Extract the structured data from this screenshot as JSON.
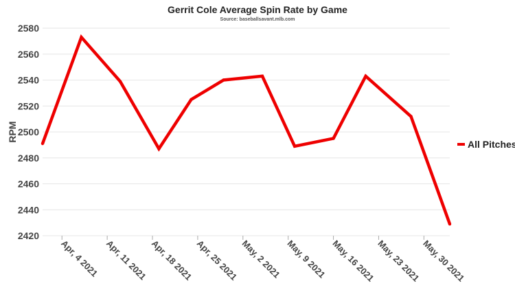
{
  "chart_data": {
    "type": "line",
    "title": "Gerrit Cole Average Spin Rate by Game",
    "subtitle": "Source: baseballsavant.mlb.com",
    "xlabel": "",
    "ylabel": "RPM",
    "ylim": [
      2420,
      2580
    ],
    "yticks": [
      2420,
      2440,
      2460,
      2480,
      2500,
      2520,
      2540,
      2560,
      2580
    ],
    "xlim": [
      "2021-04-01",
      "2021-06-03"
    ],
    "xtick_labels": [
      "Apr, 4 2021",
      "Apr, 11 2021",
      "Apr, 18 2021",
      "Apr, 25 2021",
      "May, 2 2021",
      "May, 9 2021",
      "May, 16 2021",
      "May, 23 2021",
      "May, 30 2021"
    ],
    "xtick_dates": [
      "2021-04-04",
      "2021-04-11",
      "2021-04-18",
      "2021-04-25",
      "2021-05-02",
      "2021-05-09",
      "2021-05-16",
      "2021-05-23",
      "2021-05-30"
    ],
    "grid": true,
    "legend_position": "right",
    "series": [
      {
        "name": "All Pitches",
        "color": "#ee0000",
        "x": [
          "2021-04-01",
          "2021-04-07",
          "2021-04-13",
          "2021-04-19",
          "2021-04-24",
          "2021-04-29",
          "2021-05-05",
          "2021-05-10",
          "2021-05-16",
          "2021-05-21",
          "2021-05-28",
          "2021-06-03"
        ],
        "y": [
          2491,
          2573,
          2539,
          2487,
          2525,
          2540,
          2543,
          2489,
          2495,
          2543,
          2512,
          2429
        ]
      }
    ]
  }
}
